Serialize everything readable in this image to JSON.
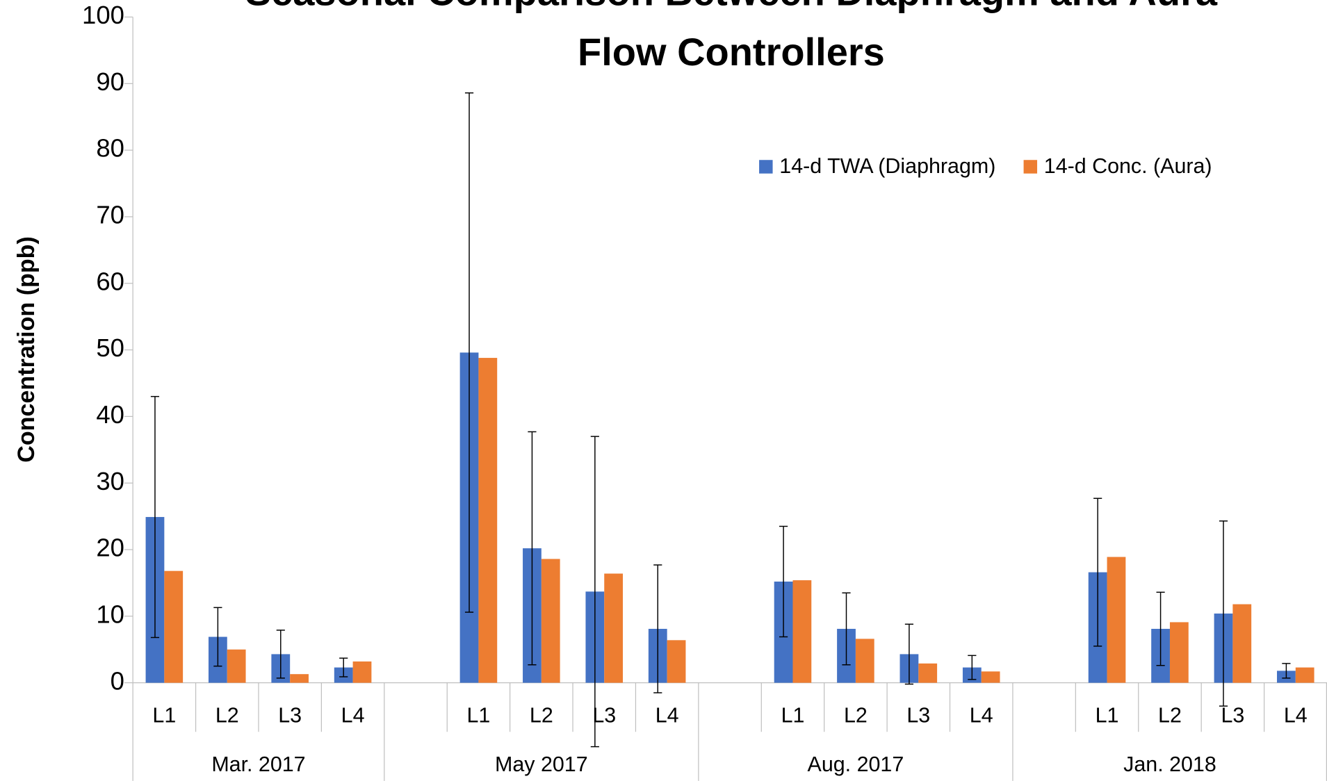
{
  "chart_data": {
    "type": "bar",
    "title": [
      "Seasonal Comparison Between Diaphragm and Aura",
      "Flow Controllers"
    ],
    "y_label": "Concentration (ppb)",
    "categories": [
      "L1",
      "L2",
      "L3",
      "L4",
      null,
      "L1",
      "L2",
      "L3",
      "L4",
      null,
      "L1",
      "L2",
      "L3",
      "L4",
      null,
      "L1",
      "L2",
      "L3",
      "L4"
    ],
    "group_labels": [
      "Mar. 2017",
      "May 2017",
      "Aug. 2017",
      "Jan. 2018"
    ],
    "series": [
      {
        "name": "14-d TWA (Diaphragm)",
        "color": "#4472c4",
        "values": [
          24.9,
          6.9,
          4.3,
          2.3,
          null,
          49.6,
          20.2,
          13.7,
          8.1,
          null,
          15.2,
          8.1,
          4.3,
          2.3,
          null,
          16.6,
          8.1,
          10.4,
          1.8
        ],
        "errors": [
          18.1,
          4.4,
          3.6,
          1.4,
          null,
          39.0,
          17.5,
          23.3,
          9.6,
          null,
          8.3,
          5.4,
          4.5,
          1.8,
          null,
          11.1,
          5.5,
          13.9,
          1.1
        ]
      },
      {
        "name": "14-d Conc. (Aura)",
        "color": "#ed7d31",
        "values": [
          16.8,
          5.0,
          1.3,
          3.2,
          null,
          48.8,
          18.6,
          16.4,
          6.4,
          null,
          15.4,
          6.6,
          2.9,
          1.7,
          null,
          18.9,
          9.1,
          11.8,
          2.3
        ]
      }
    ],
    "ylim": [
      0,
      100
    ],
    "yticks": [
      0,
      10,
      20,
      30,
      40,
      50,
      60,
      70,
      80,
      90,
      100
    ],
    "grid": false,
    "legend": "top-right"
  }
}
